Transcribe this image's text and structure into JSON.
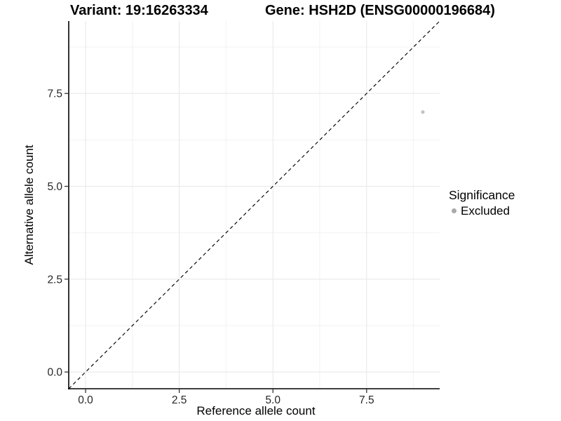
{
  "chart_data": {
    "type": "scatter",
    "titles": {
      "variant": "Variant: 19:16263334",
      "gene": "Gene: HSH2D (ENSG00000196684)"
    },
    "xlabel": "Reference allele count",
    "ylabel": "Alternative allele count",
    "x_ticks": [
      "0.0",
      "2.5",
      "5.0",
      "7.5"
    ],
    "x_tick_values": [
      0,
      2.5,
      5,
      7.5
    ],
    "y_ticks": [
      "0.0",
      "2.5",
      "5.0",
      "7.5"
    ],
    "y_tick_values": [
      0,
      2.5,
      5,
      7.5
    ],
    "minor_tick_values": [
      1.25,
      3.75,
      6.25,
      8.75
    ],
    "xlim": [
      -0.45,
      9.45
    ],
    "ylim": [
      -0.45,
      9.45
    ],
    "grid": "on",
    "identity_line": {
      "style": "dashed",
      "from": -0.45,
      "to": 9.45,
      "color": "#000000"
    },
    "points": [
      {
        "x": 9,
        "y": 7,
        "series": "Excluded",
        "color": "#c3c3c3",
        "radius": 2.6
      }
    ],
    "legend": {
      "title": "Significance",
      "position": "right",
      "entries": [
        {
          "label": "Excluded",
          "color": "#a9a9a9"
        }
      ]
    },
    "colors": {
      "grid_major": "#e9e9e9",
      "grid_minor": "#f2f2f2",
      "axis_line": "#000000",
      "tick_mark": "#333333",
      "tick_label": "#262626"
    }
  }
}
